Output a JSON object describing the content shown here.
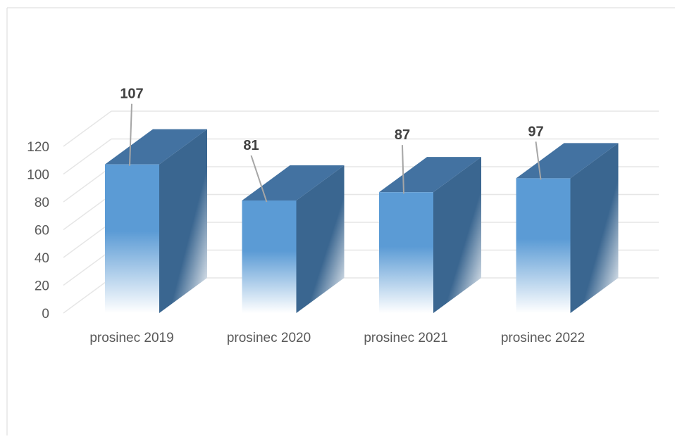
{
  "chart_data": {
    "type": "bar",
    "categories": [
      "prosinec 2019",
      "prosinec 2020",
      "prosinec 2021",
      "prosinec 2022"
    ],
    "values": [
      107,
      81,
      87,
      97
    ],
    "title": "",
    "xlabel": "",
    "ylabel": "",
    "ylim": [
      0,
      120
    ],
    "yticks": [
      0,
      20,
      40,
      60,
      80,
      100,
      120
    ],
    "data_labels": [
      "107",
      "81",
      "87",
      "97"
    ],
    "grid": true,
    "legend": "none",
    "style": "3d-column",
    "colors": {
      "front_top": "#5b9bd5",
      "front_bottom": "#ffffff",
      "top_face": "#4372a1",
      "side_face": "#3a6690",
      "gridline": "#e6e6e6",
      "leader_line": "#a6a6a6"
    }
  }
}
